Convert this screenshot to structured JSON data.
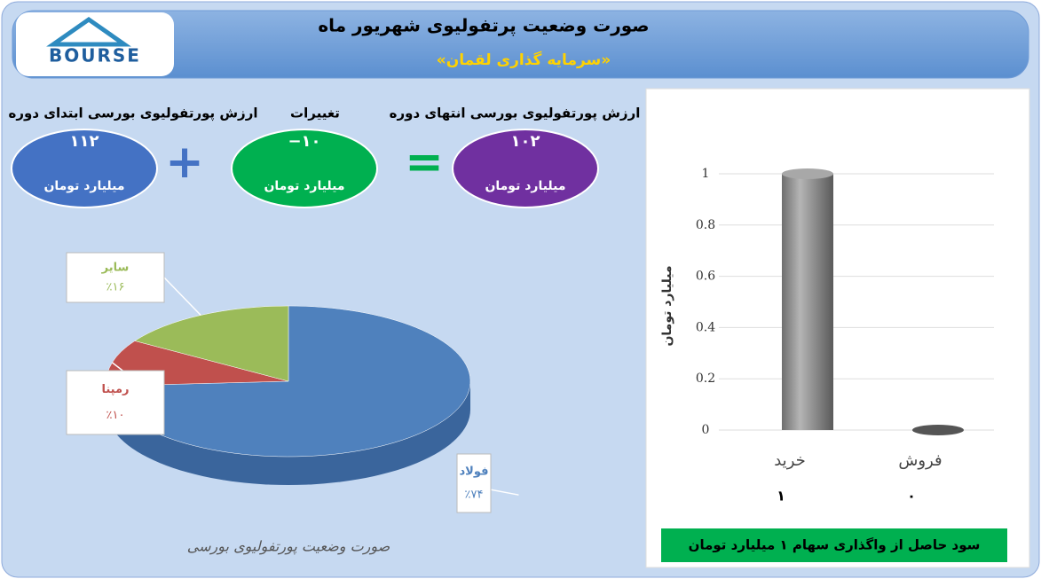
{
  "header": {
    "title": "صورت وضعیت پرتفولیوی شهریور ماه",
    "subtitle": "«سرمایه گذاری لقمان»",
    "logo": "BOURSE"
  },
  "summary": [
    {
      "label": "ارزش پورتفولیوی بورسی ابتدای دوره",
      "value": "۱۱۲",
      "unit": "میلیارد تومان",
      "color": "#4472c4"
    },
    {
      "label": "تغییرات",
      "value": "−۱۰",
      "unit": "میلیارد تومان",
      "color": "#00b050"
    },
    {
      "label": "ارزش پورتفولیوی بورسی انتهای دوره",
      "value": "۱۰۲",
      "unit": "میلیارد تومان",
      "color": "#7030a0"
    }
  ],
  "chart_data": [
    {
      "type": "pie",
      "title": "صورت وضعیت پورتفولیوی بورسی",
      "categories": [
        "فولاد",
        "رمپنا",
        "سایر"
      ],
      "values": [
        74,
        10,
        16
      ],
      "value_labels": [
        "٪۷۴",
        "٪۱۰",
        "٪۱۶"
      ],
      "colors": [
        "#4f81bd",
        "#c0504d",
        "#9bbb59"
      ]
    },
    {
      "type": "bar",
      "y_label": "میلیارد تومان",
      "categories": [
        "خرید",
        "فروش"
      ],
      "values": [
        1,
        0
      ],
      "value_labels": [
        "۱",
        "۰"
      ],
      "color": "#8c8c8c",
      "ylim": [
        0,
        1.1
      ],
      "yticks": [
        0,
        0.2,
        0.4,
        0.6,
        0.8,
        1
      ],
      "grid": true,
      "footer": "سود حاصل از واگذاری سهام ۱ میلیارد تومان"
    }
  ]
}
